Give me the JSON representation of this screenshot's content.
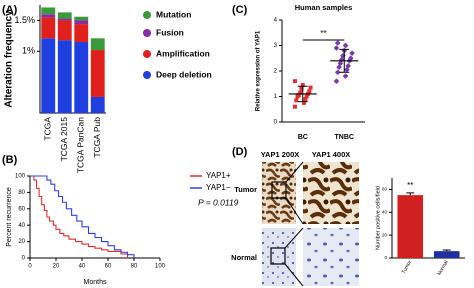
{
  "chart_data": [
    {
      "type": "stacked-bar",
      "panel": "(A)",
      "ylabel": "Alteration frequency",
      "categories": [
        "TCGA",
        "TCGA 2015",
        "TCGA PanCan",
        "TCGA Pub"
      ],
      "ylim": [
        0,
        1.75
      ],
      "yticks": [
        {
          "value": 1,
          "label": "1%"
        },
        {
          "value": 1.5,
          "label": "1.5%"
        }
      ],
      "series": [
        {
          "name": "Deep deletion",
          "color": "#1f3fe0",
          "values": [
            1.21,
            1.18,
            1.15,
            0.26
          ]
        },
        {
          "name": "Amplification",
          "color": "#e0201c",
          "values": [
            0.34,
            0.32,
            0.29,
            0.76
          ]
        },
        {
          "name": "Fusion",
          "color": "#8a2aa8",
          "values": [
            0.05,
            0.03,
            0.06,
            0
          ]
        },
        {
          "name": "Mutation",
          "color": "#3a9a3a",
          "values": [
            0.11,
            0.1,
            0.06,
            0.19
          ]
        }
      ]
    },
    {
      "type": "step-line",
      "panel": "(B)",
      "ylabel": "Percent recurrence",
      "xlabel": "Months",
      "annotation": "P = 0.0119",
      "xlim": [
        0,
        100
      ],
      "xticks": [
        0,
        20,
        40,
        60,
        80,
        100
      ],
      "ylim": [
        0,
        100
      ],
      "yticks": [
        0,
        20,
        40,
        60,
        80,
        100
      ],
      "series": [
        {
          "name": "YAP1+",
          "color": "#e03030",
          "x": [
            0,
            3,
            5,
            7,
            9,
            11,
            13,
            15,
            18,
            20,
            23,
            26,
            30,
            35,
            40,
            45,
            50,
            55,
            60,
            70,
            75
          ],
          "values": [
            100,
            95,
            85,
            75,
            65,
            58,
            50,
            45,
            40,
            35,
            30,
            27,
            23,
            20,
            17,
            14,
            12,
            10,
            8,
            5,
            0
          ]
        },
        {
          "name": "YAP1−",
          "color": "#3040e0",
          "x": [
            0,
            10,
            13,
            16,
            19,
            22,
            25,
            28,
            32,
            36,
            40,
            45,
            50,
            55,
            60,
            65,
            70,
            75,
            80
          ],
          "values": [
            100,
            100,
            95,
            90,
            82,
            75,
            68,
            60,
            52,
            45,
            38,
            30,
            25,
            20,
            15,
            10,
            7,
            4,
            0
          ]
        }
      ]
    },
    {
      "type": "strip",
      "panel": "(C)",
      "title": "Human samples",
      "ylabel": "Relative expression of YAP1",
      "annotation": "**",
      "ylim": [
        0,
        4
      ],
      "yticks": [
        0,
        1,
        2,
        3,
        4
      ],
      "groups": [
        {
          "name": "BC",
          "color": "#e03030",
          "mean": 1.1,
          "sd": 0.3,
          "values": [
            0.6,
            0.75,
            0.85,
            0.9,
            1.0,
            1.0,
            1.05,
            1.1,
            1.15,
            1.2,
            1.3,
            1.35,
            1.45,
            1.6
          ]
        },
        {
          "name": "TNBC",
          "color": "#7a3aa8",
          "mean": 2.4,
          "sd": 0.45,
          "values": [
            1.6,
            1.8,
            1.95,
            2.05,
            2.15,
            2.2,
            2.3,
            2.4,
            2.45,
            2.5,
            2.6,
            2.7,
            2.8,
            2.9,
            3.0,
            3.1
          ]
        }
      ]
    },
    {
      "type": "bar",
      "panel": "(D)",
      "ylabel": "Number positive cells/field",
      "annotation": "**",
      "images": {
        "columns": [
          "YAP1 200X",
          "YAP1 400X"
        ],
        "rows": [
          "Tumor",
          "Normal"
        ]
      },
      "categories": [
        "Tumor",
        "Normal"
      ],
      "values": [
        55,
        6
      ],
      "errors": [
        2,
        1
      ],
      "colors": [
        "#d02020",
        "#2030a0"
      ],
      "ylim": [
        0,
        70
      ],
      "yticks": [
        0,
        20,
        40,
        60
      ]
    }
  ]
}
